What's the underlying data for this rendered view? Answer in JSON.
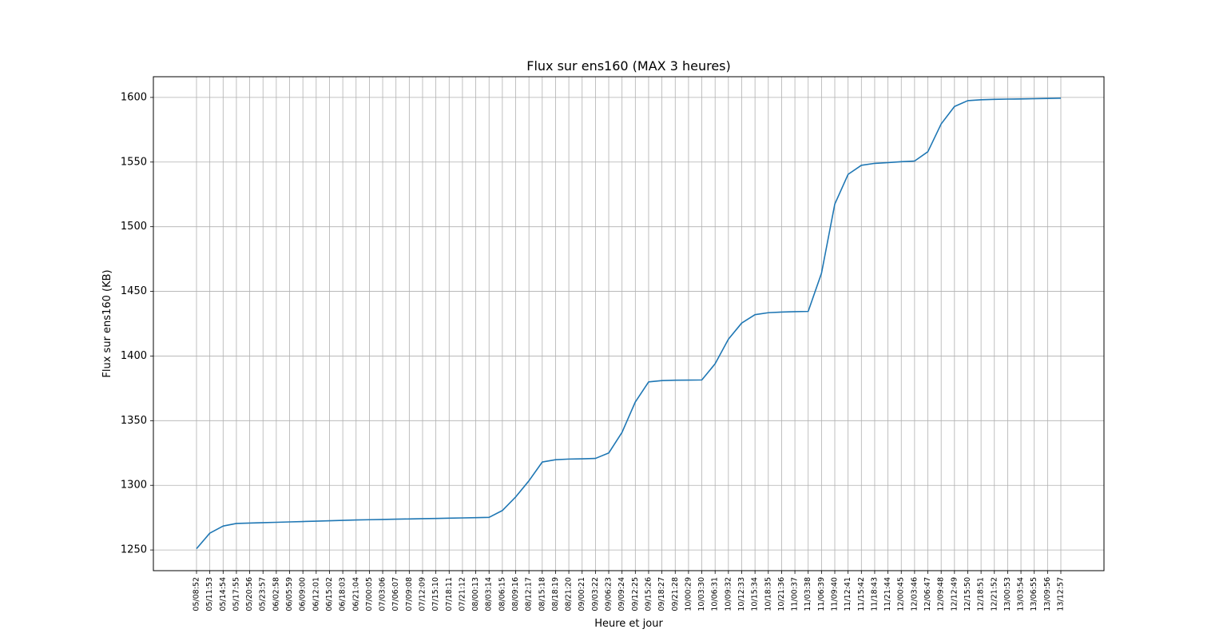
{
  "chart_data": {
    "type": "line",
    "title": "Flux sur ens160 (MAX 3 heures)",
    "xlabel": "Heure et jour",
    "ylabel": "Flux sur ens160 (KB)",
    "ylim": [
      1234,
      1616
    ],
    "yticks": [
      1250,
      1300,
      1350,
      1400,
      1450,
      1500,
      1550,
      1600
    ],
    "grid": true,
    "line_color": "#1f77b4",
    "categories": [
      "05/08:52",
      "05/11:53",
      "05/14:54",
      "05/17:55",
      "05/20:56",
      "05/23:57",
      "06/02:58",
      "06/05:59",
      "06/09:00",
      "06/12:01",
      "06/15:02",
      "06/18:03",
      "06/21:04",
      "07/00:05",
      "07/03:06",
      "07/06:07",
      "07/09:08",
      "07/12:09",
      "07/15:10",
      "07/18:11",
      "07/21:12",
      "08/00:13",
      "08/03:14",
      "08/06:15",
      "08/09:16",
      "08/12:17",
      "08/15:18",
      "08/18:19",
      "08/21:20",
      "09/00:21",
      "09/03:22",
      "09/06:23",
      "09/09:24",
      "09/12:25",
      "09/15:26",
      "09/18:27",
      "09/21:28",
      "10/00:29",
      "10/03:30",
      "10/06:31",
      "10/09:32",
      "10/12:33",
      "10/15:34",
      "10/18:35",
      "10/21:36",
      "11/00:37",
      "11/03:38",
      "11/06:39",
      "11/09:40",
      "11/12:41",
      "11/15:42",
      "11/18:43",
      "11/21:44",
      "12/00:45",
      "12/03:46",
      "12/06:47",
      "12/09:48",
      "12/12:49",
      "12/15:50",
      "12/18:51",
      "12/21:52",
      "13/00:53",
      "13/03:54",
      "13/06:55",
      "13/09:56",
      "13/12:57"
    ],
    "values": [
      1251,
      1263,
      1268.5,
      1270.5,
      1270.8,
      1271.1,
      1271.4,
      1271.7,
      1272,
      1272.3,
      1272.6,
      1272.9,
      1273.2,
      1273.4,
      1273.6,
      1273.8,
      1274,
      1274.2,
      1274.4,
      1274.6,
      1274.8,
      1275,
      1275.2,
      1280.5,
      1291,
      1303.5,
      1318,
      1319.8,
      1320.3,
      1320.5,
      1320.8,
      1325,
      1341,
      1364.5,
      1380,
      1381,
      1381.3,
      1381.4,
      1381.5,
      1394,
      1413,
      1425.5,
      1432,
      1433.5,
      1434,
      1434.3,
      1434.5,
      1464,
      1517.5,
      1540.5,
      1547.5,
      1549,
      1549.6,
      1550.3,
      1550.8,
      1558,
      1579.5,
      1593,
      1597.5,
      1598.2,
      1598.5,
      1598.7,
      1598.8,
      1599,
      1599.2,
      1599.4
    ]
  }
}
